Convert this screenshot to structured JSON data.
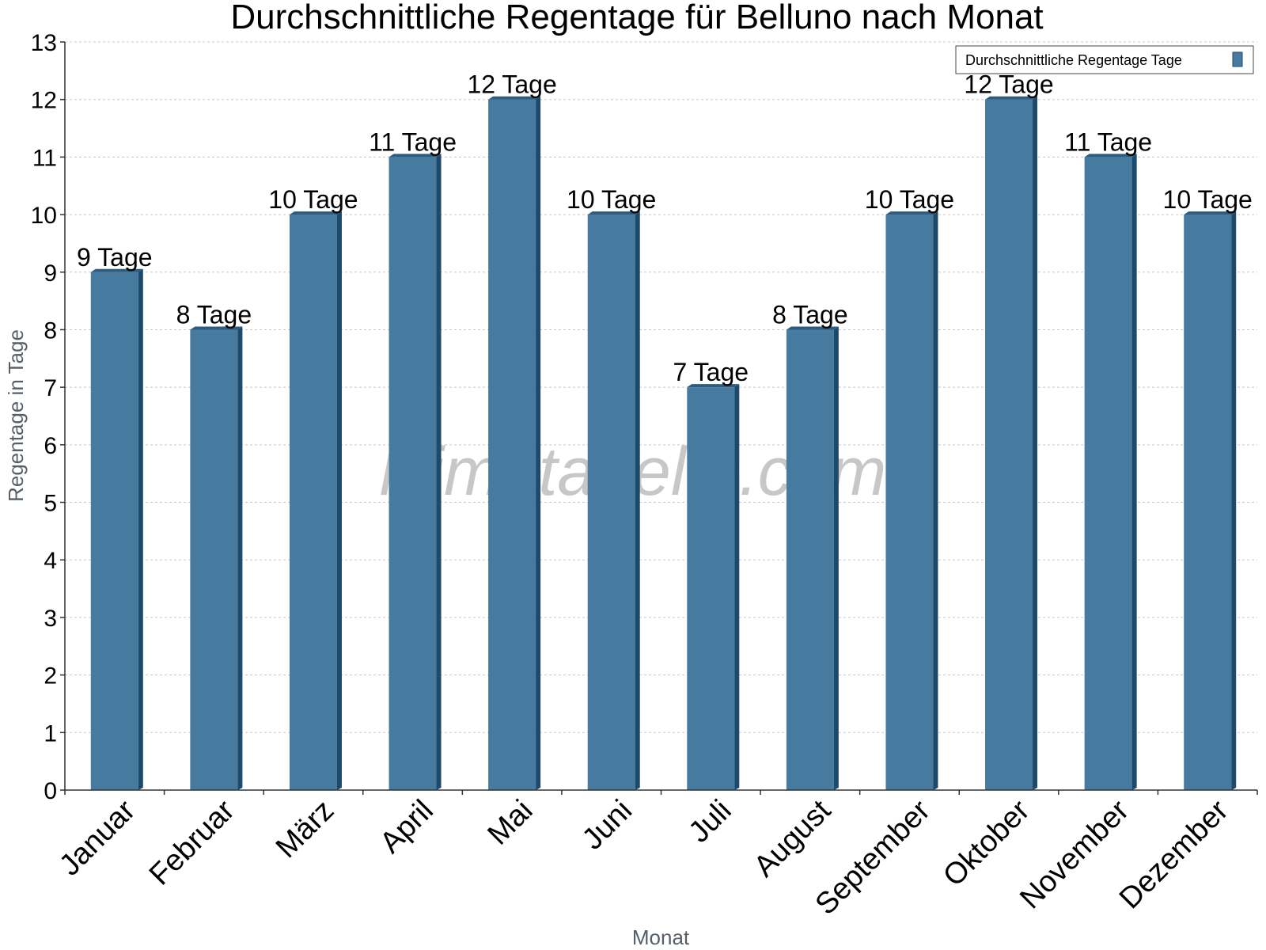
{
  "chart_data": {
    "type": "bar",
    "title": "Durchschnittliche Regentage für Belluno nach Monat",
    "xlabel": "Monat",
    "ylabel": "Regentage in Tage",
    "categories": [
      "Januar",
      "Februar",
      "März",
      "April",
      "Mai",
      "Juni",
      "Juli",
      "August",
      "September",
      "Oktober",
      "November",
      "Dezember"
    ],
    "series": [
      {
        "name": "Durchschnittliche Regentage Tage",
        "values": [
          9,
          8,
          10,
          11,
          12,
          10,
          7,
          8,
          10,
          12,
          11,
          10
        ],
        "labels": [
          "9 Tage",
          "8 Tage",
          "10 Tage",
          "11 Tage",
          "12 Tage",
          "10 Tage",
          "7 Tage",
          "8 Tage",
          "10 Tage",
          "12 Tage",
          "11 Tage",
          "10 Tage"
        ]
      }
    ],
    "ylim": [
      0,
      13
    ],
    "yticks": [
      "0",
      "1",
      "2",
      "3",
      "4",
      "5",
      "6",
      "7",
      "8",
      "9",
      "10",
      "11",
      "12",
      "13"
    ],
    "grid": true,
    "legend": "top-right",
    "watermark": "klimatabelle.com",
    "colors": {
      "bar_face": "#467b9f",
      "bar_side": "#1d4a6b",
      "bar_top": "#2d5c80",
      "grid": "#c8c8c8",
      "axis": "#333333"
    }
  }
}
